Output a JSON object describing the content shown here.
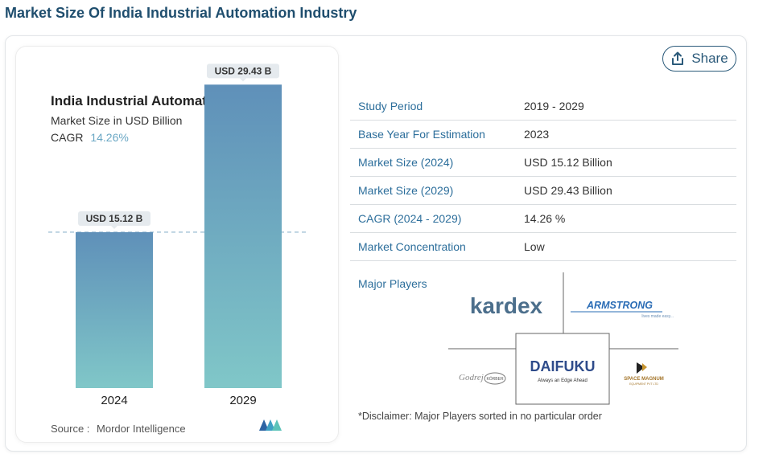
{
  "page_title": "Market Size Of India Industrial Automation Industry",
  "share_label": "Share",
  "icons": {
    "share": "share-upload-icon",
    "brand": "mordor-intelligence-logo-icon"
  },
  "colors": {
    "accent": "#2c6e9b",
    "bar_top": "#5f90b9",
    "bar_bottom": "#80c7c8",
    "dashed_line": "#8fb4cc"
  },
  "chart_data": {
    "type": "bar",
    "title": "India Industrial Automation Market",
    "subtitle": "Market Size in USD Billion",
    "cagr_label": "CAGR",
    "cagr_value": "14.26%",
    "categories": [
      "2024",
      "2029"
    ],
    "values": [
      15.12,
      29.43
    ],
    "data_labels": [
      "USD 15.12 B",
      "USD 29.43 B"
    ],
    "ylim": [
      0,
      30
    ],
    "grid": false,
    "reference_line_value": 15.12,
    "source_label": "Source :",
    "source_value": "Mordor Intelligence"
  },
  "info_rows": [
    {
      "label": "Study Period",
      "value": "2019 - 2029"
    },
    {
      "label": "Base Year For Estimation",
      "value": "2023"
    },
    {
      "label": "Market Size (2024)",
      "value": "USD 15.12 Billion"
    },
    {
      "label": "Market Size (2029)",
      "value": "USD 29.43 Billion"
    },
    {
      "label": "CAGR (2024 - 2029)",
      "value": "14.26 %"
    },
    {
      "label": "Market Concentration",
      "value": "Low"
    }
  ],
  "major_players_label": "Major Players",
  "players": {
    "kardex": "kardex",
    "armstrong": "ARMSTRONG",
    "armstrong_tagline": "lives made easy...",
    "godrej": "Godrej",
    "koerber": "KÖRBER",
    "daifuku": "DAIFUKU",
    "daifuku_tagline": "Always an Edge Ahead",
    "space_magnum": "SPACE MAGNUM",
    "space_magnum_sub": "EQUIPMENT PVT LTD"
  },
  "disclaimer": "*Disclaimer: Major Players sorted in no particular order"
}
